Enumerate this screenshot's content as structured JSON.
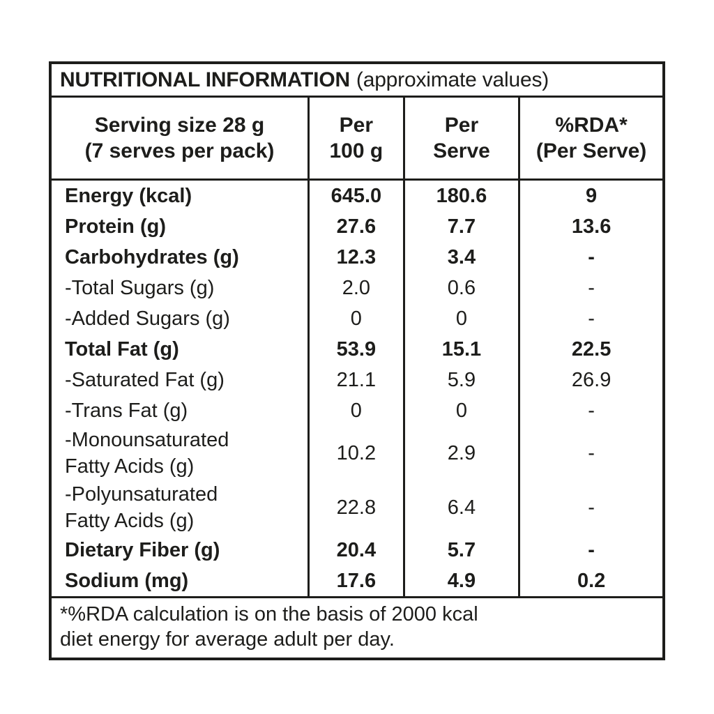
{
  "colors": {
    "ink": "#1d1d1b",
    "background": "#ffffff"
  },
  "table": {
    "title": {
      "main": "NUTRITIONAL INFORMATION",
      "note": "(approximate values)"
    },
    "header": {
      "serving": {
        "line1": "Serving size 28 g",
        "line2": "(7 serves per pack)"
      },
      "per_100g": {
        "line1": "Per",
        "line2": "100 g"
      },
      "per_serve": {
        "line1": "Per",
        "line2": "Serve"
      },
      "rda": {
        "line1": "%RDA*",
        "line2": "(Per Serve)"
      }
    },
    "rows": [
      {
        "label_lines": [
          "Energy (kcal)"
        ],
        "per_100g": "645.0",
        "per_serve": "180.6",
        "rda": "9",
        "bold": true
      },
      {
        "label_lines": [
          "Protein (g)"
        ],
        "per_100g": "27.6",
        "per_serve": "7.7",
        "rda": "13.6",
        "bold": true
      },
      {
        "label_lines": [
          "Carbohydrates (g)"
        ],
        "per_100g": "12.3",
        "per_serve": "3.4",
        "rda": "-",
        "bold": true
      },
      {
        "label_lines": [
          "-Total Sugars (g)"
        ],
        "per_100g": "2.0",
        "per_serve": "0.6",
        "rda": "-",
        "bold": false
      },
      {
        "label_lines": [
          "-Added Sugars (g)"
        ],
        "per_100g": "0",
        "per_serve": "0",
        "rda": "-",
        "bold": false
      },
      {
        "label_lines": [
          "Total Fat (g)"
        ],
        "per_100g": "53.9",
        "per_serve": "15.1",
        "rda": "22.5",
        "bold": true
      },
      {
        "label_lines": [
          "-Saturated Fat (g)"
        ],
        "per_100g": "21.1",
        "per_serve": "5.9",
        "rda": "26.9",
        "bold": false
      },
      {
        "label_lines": [
          "-Trans Fat (g)"
        ],
        "per_100g": "0",
        "per_serve": "0",
        "rda": "-",
        "bold": false
      },
      {
        "label_lines": [
          "-Monounsaturated",
          "Fatty Acids (g)"
        ],
        "per_100g": "10.2",
        "per_serve": "2.9",
        "rda": "-",
        "bold": false
      },
      {
        "label_lines": [
          "-Polyunsaturated",
          "Fatty Acids (g)"
        ],
        "per_100g": "22.8",
        "per_serve": "6.4",
        "rda": "-",
        "bold": false
      },
      {
        "label_lines": [
          "Dietary Fiber (g)"
        ],
        "per_100g": "20.4",
        "per_serve": "5.7",
        "rda": "-",
        "bold": true
      },
      {
        "label_lines": [
          "Sodium (mg)"
        ],
        "per_100g": "17.6",
        "per_serve": "4.9",
        "rda": "0.2",
        "bold": true
      }
    ],
    "footnote": {
      "line1": "*%RDA calculation is on the basis of 2000 kcal",
      "line2": "diet energy for average adult per day."
    }
  }
}
